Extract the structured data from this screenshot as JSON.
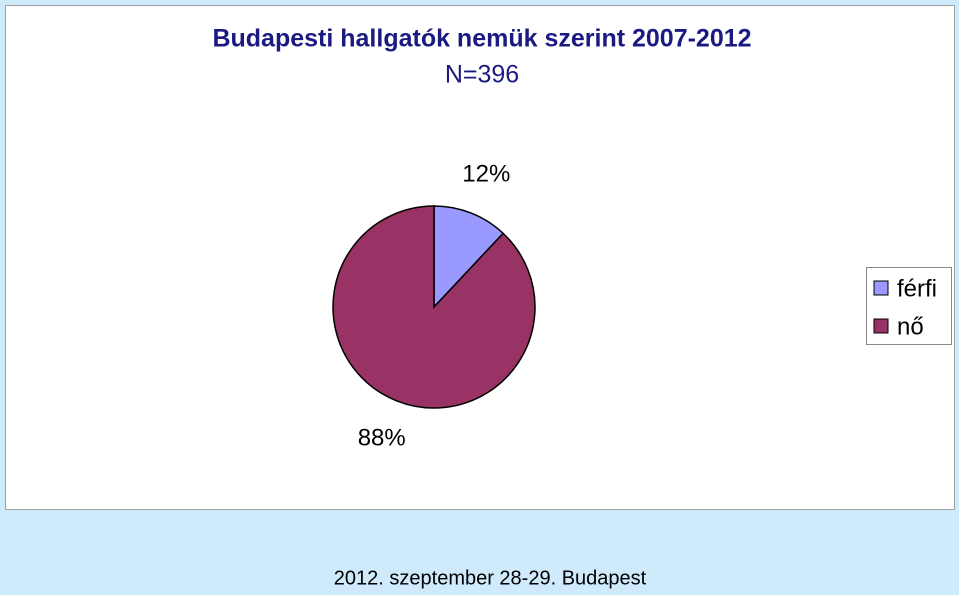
{
  "chart_data": {
    "type": "pie",
    "title": "Budapesti hallgatók nemük szerint 2007-2012",
    "subtitle": "N=396",
    "categories": [
      "férfi",
      "nő"
    ],
    "values": [
      12,
      88
    ],
    "value_labels": [
      "12%",
      "88%"
    ],
    "colors": [
      "#9999ff",
      "#993366"
    ],
    "legend": "right"
  },
  "footer": "2012. szeptember 28-29. Budapest"
}
